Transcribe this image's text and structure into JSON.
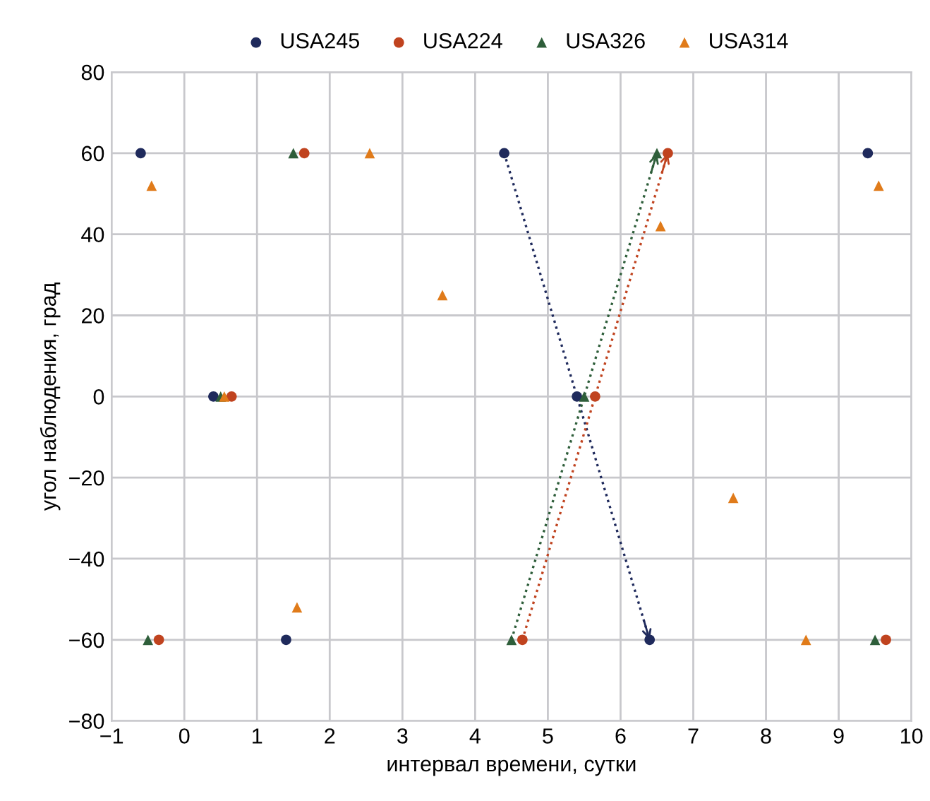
{
  "chart_data": {
    "type": "scatter",
    "xlabel": "интервал времени, сутки",
    "ylabel": "угол наблюдения, град",
    "xlim": [
      -1,
      10
    ],
    "ylim": [
      -80,
      80
    ],
    "xticks": [
      {
        "value": -1,
        "label": "−1"
      },
      0,
      1,
      2,
      3,
      4,
      5,
      6,
      7,
      8,
      9,
      10
    ],
    "yticks": [
      {
        "value": -80,
        "label": "−80"
      },
      {
        "value": -60,
        "label": "−60"
      },
      {
        "value": -40,
        "label": "−40"
      },
      {
        "value": -20,
        "label": "−20"
      },
      0,
      20,
      40,
      60,
      80
    ],
    "grid": true,
    "legend": "top",
    "series": [
      {
        "name": "USA245",
        "color": "#1f2a5c",
        "marker": "circle",
        "x": [
          -0.6,
          0.4,
          1.4,
          4.4,
          5.4,
          6.4,
          9.4
        ],
        "values": [
          60,
          0,
          -60,
          60,
          0,
          -60,
          60
        ]
      },
      {
        "name": "USA224",
        "color": "#c0431f",
        "marker": "circle",
        "x": [
          -0.35,
          0.65,
          1.65,
          4.65,
          5.65,
          6.65,
          9.65
        ],
        "values": [
          -60,
          0,
          60,
          -60,
          0,
          60,
          -60
        ]
      },
      {
        "name": "USA326",
        "color": "#2e5e3a",
        "marker": "triangle",
        "x": [
          -0.5,
          0.5,
          1.5,
          4.5,
          5.5,
          6.5,
          9.5
        ],
        "values": [
          -60,
          0,
          60,
          -60,
          0,
          60,
          -60
        ]
      },
      {
        "name": "USA314",
        "color": "#e07b1a",
        "marker": "triangle",
        "x": [
          -0.45,
          0.55,
          1.55,
          2.55,
          3.55,
          6.55,
          7.55,
          8.55,
          9.55
        ],
        "values": [
          52,
          0,
          -52,
          60,
          25,
          42,
          -25,
          -60,
          52
        ]
      },
      {
        "type": "line",
        "color": "#1f2a5c",
        "line_style": "dotted",
        "marker": "none",
        "x": [
          4.4,
          6.4
        ],
        "values": [
          60,
          -60
        ]
      },
      {
        "type": "line",
        "color": "#2e5e3a",
        "line_style": "dotted",
        "marker": "none",
        "x": [
          4.5,
          6.5
        ],
        "values": [
          -60,
          60
        ]
      },
      {
        "type": "line",
        "color": "#c0431f",
        "line_style": "dotted",
        "marker": "none",
        "x": [
          4.65,
          6.65
        ],
        "values": [
          -60,
          60
        ]
      }
    ]
  }
}
